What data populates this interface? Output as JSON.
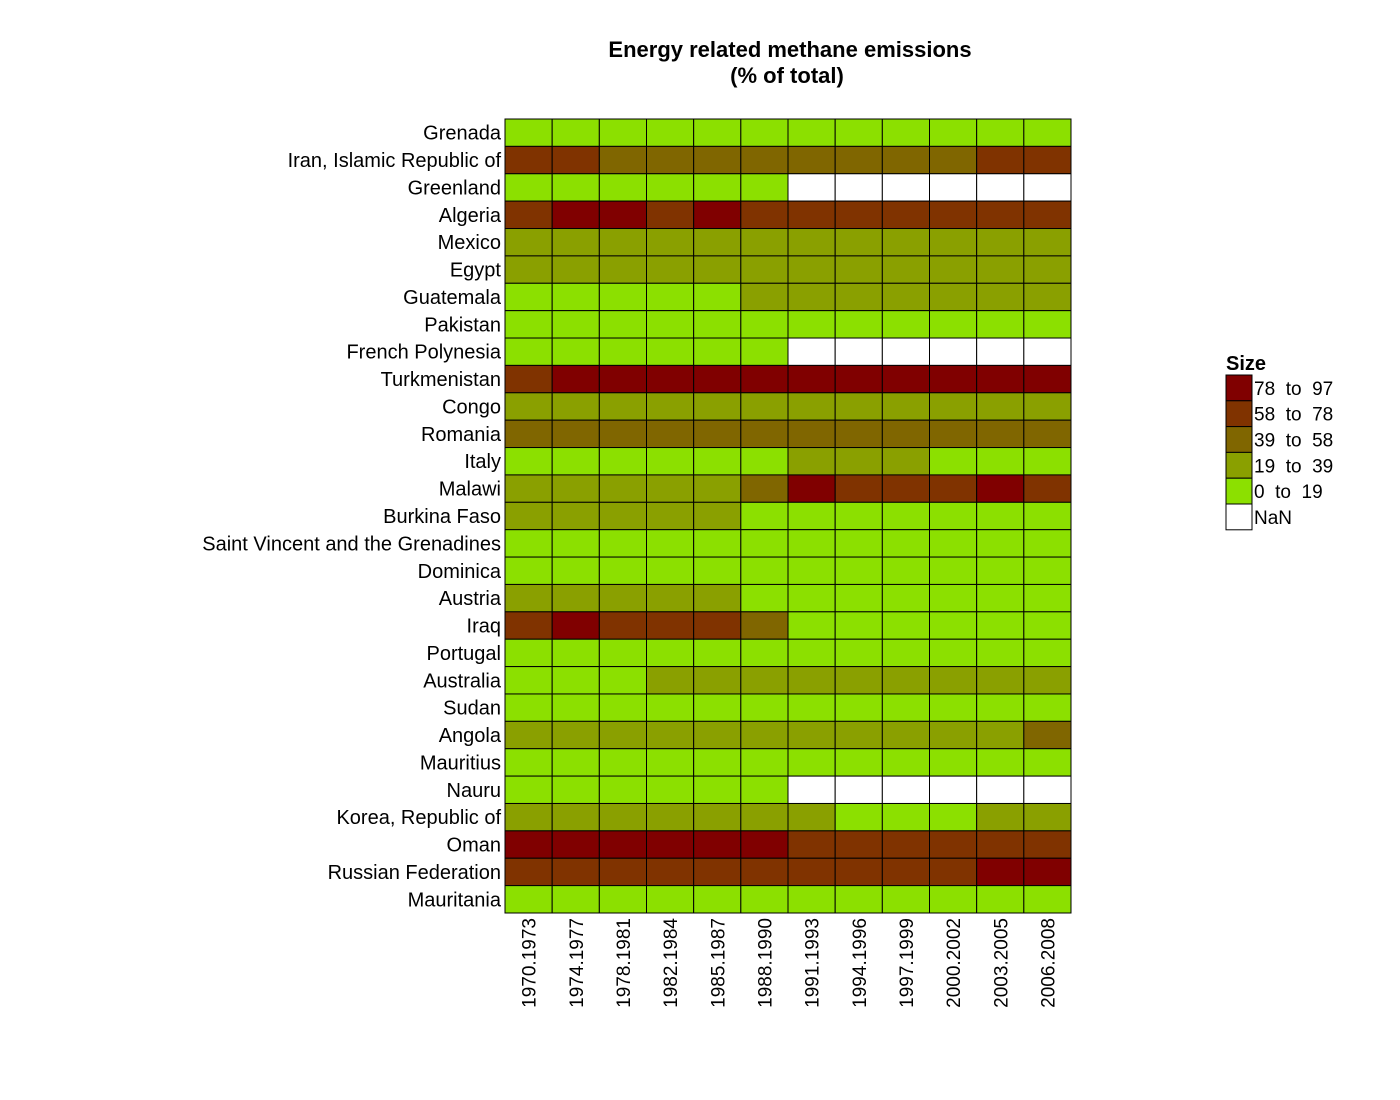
{
  "chart_data": {
    "type": "heatmap",
    "title_lines": [
      "Energy related methane emissions",
      "(% of total)"
    ],
    "columns": [
      "1970.1973",
      "1974.1977",
      "1978.1981",
      "1982.1984",
      "1985.1987",
      "1988.1990",
      "1991.1993",
      "1994.1996",
      "1997.1999",
      "2000.2002",
      "2003.2005",
      "2006.2008"
    ],
    "rows": [
      "Grenada",
      "Iran, Islamic Republic of",
      "Greenland",
      "Algeria",
      "Mexico",
      "Egypt",
      "Guatemala",
      "Pakistan",
      "French Polynesia",
      "Turkmenistan",
      "Congo",
      "Romania",
      "Italy",
      "Malawi",
      "Burkina Faso",
      "Saint Vincent and the Grenadines",
      "Dominica",
      "Austria",
      "Iraq",
      "Portugal",
      "Australia",
      "Sudan",
      "Angola",
      "Mauritius",
      "Nauru",
      "Korea, Republic of",
      "Oman",
      "Russian Federation",
      "Mauritania"
    ],
    "cells": [
      [
        0,
        0,
        0,
        0,
        0,
        0,
        0,
        0,
        0,
        0,
        0,
        0
      ],
      [
        3,
        3,
        2,
        2,
        2,
        2,
        2,
        2,
        2,
        2,
        3,
        3
      ],
      [
        0,
        0,
        0,
        0,
        0,
        0,
        null,
        null,
        null,
        null,
        null,
        null
      ],
      [
        3,
        4,
        4,
        3,
        4,
        3,
        3,
        3,
        3,
        3,
        3,
        3
      ],
      [
        1,
        1,
        1,
        1,
        1,
        1,
        1,
        1,
        1,
        1,
        1,
        1
      ],
      [
        1,
        1,
        1,
        1,
        1,
        1,
        1,
        1,
        1,
        1,
        1,
        1
      ],
      [
        0,
        0,
        0,
        0,
        0,
        1,
        1,
        1,
        1,
        1,
        1,
        1
      ],
      [
        0,
        0,
        0,
        0,
        0,
        0,
        0,
        0,
        0,
        0,
        0,
        0
      ],
      [
        0,
        0,
        0,
        0,
        0,
        0,
        null,
        null,
        null,
        null,
        null,
        null
      ],
      [
        3,
        4,
        4,
        4,
        4,
        4,
        4,
        4,
        4,
        4,
        4,
        4
      ],
      [
        1,
        1,
        1,
        1,
        1,
        1,
        1,
        1,
        1,
        1,
        1,
        1
      ],
      [
        2,
        2,
        2,
        2,
        2,
        2,
        2,
        2,
        2,
        2,
        2,
        2
      ],
      [
        0,
        0,
        0,
        0,
        0,
        0,
        1,
        1,
        1,
        0,
        0,
        0
      ],
      [
        1,
        1,
        1,
        1,
        1,
        2,
        4,
        3,
        3,
        3,
        4,
        3
      ],
      [
        1,
        1,
        1,
        1,
        1,
        0,
        0,
        0,
        0,
        0,
        0,
        0
      ],
      [
        0,
        0,
        0,
        0,
        0,
        0,
        0,
        0,
        0,
        0,
        0,
        0
      ],
      [
        0,
        0,
        0,
        0,
        0,
        0,
        0,
        0,
        0,
        0,
        0,
        0
      ],
      [
        1,
        1,
        1,
        1,
        1,
        0,
        0,
        0,
        0,
        0,
        0,
        0
      ],
      [
        3,
        4,
        3,
        3,
        3,
        2,
        0,
        0,
        0,
        0,
        0,
        0
      ],
      [
        0,
        0,
        0,
        0,
        0,
        0,
        0,
        0,
        0,
        0,
        0,
        0
      ],
      [
        0,
        0,
        0,
        1,
        1,
        1,
        1,
        1,
        1,
        1,
        1,
        1
      ],
      [
        0,
        0,
        0,
        0,
        0,
        0,
        0,
        0,
        0,
        0,
        0,
        0
      ],
      [
        1,
        1,
        1,
        1,
        1,
        1,
        1,
        1,
        1,
        1,
        1,
        2
      ],
      [
        0,
        0,
        0,
        0,
        0,
        0,
        0,
        0,
        0,
        0,
        0,
        0
      ],
      [
        0,
        0,
        0,
        0,
        0,
        0,
        null,
        null,
        null,
        null,
        null,
        null
      ],
      [
        1,
        1,
        1,
        1,
        1,
        1,
        1,
        0,
        0,
        0,
        1,
        1
      ],
      [
        4,
        4,
        4,
        4,
        4,
        4,
        3,
        3,
        3,
        3,
        3,
        3
      ],
      [
        3,
        3,
        3,
        3,
        3,
        3,
        3,
        3,
        3,
        3,
        4,
        4
      ],
      [
        0,
        0,
        0,
        0,
        0,
        0,
        0,
        0,
        0,
        0,
        0,
        0
      ]
    ],
    "legend": {
      "title": "Size",
      "entries": [
        {
          "label": "78  to  97",
          "color": "#800000"
        },
        {
          "label": "58  to  78",
          "color": "#803300"
        },
        {
          "label": "39  to  58",
          "color": "#806600"
        },
        {
          "label": "19  to  39",
          "color": "#8aa000"
        },
        {
          "label": "0  to  19",
          "color": "#8ce000"
        },
        {
          "label": "NaN",
          "color": "#ffffff"
        }
      ],
      "placement": "right"
    },
    "bin_colors": [
      "#8ce000",
      "#8aa000",
      "#806600",
      "#803300",
      "#800000"
    ],
    "nan_color": "#ffffff",
    "grid_color": "#000000"
  }
}
